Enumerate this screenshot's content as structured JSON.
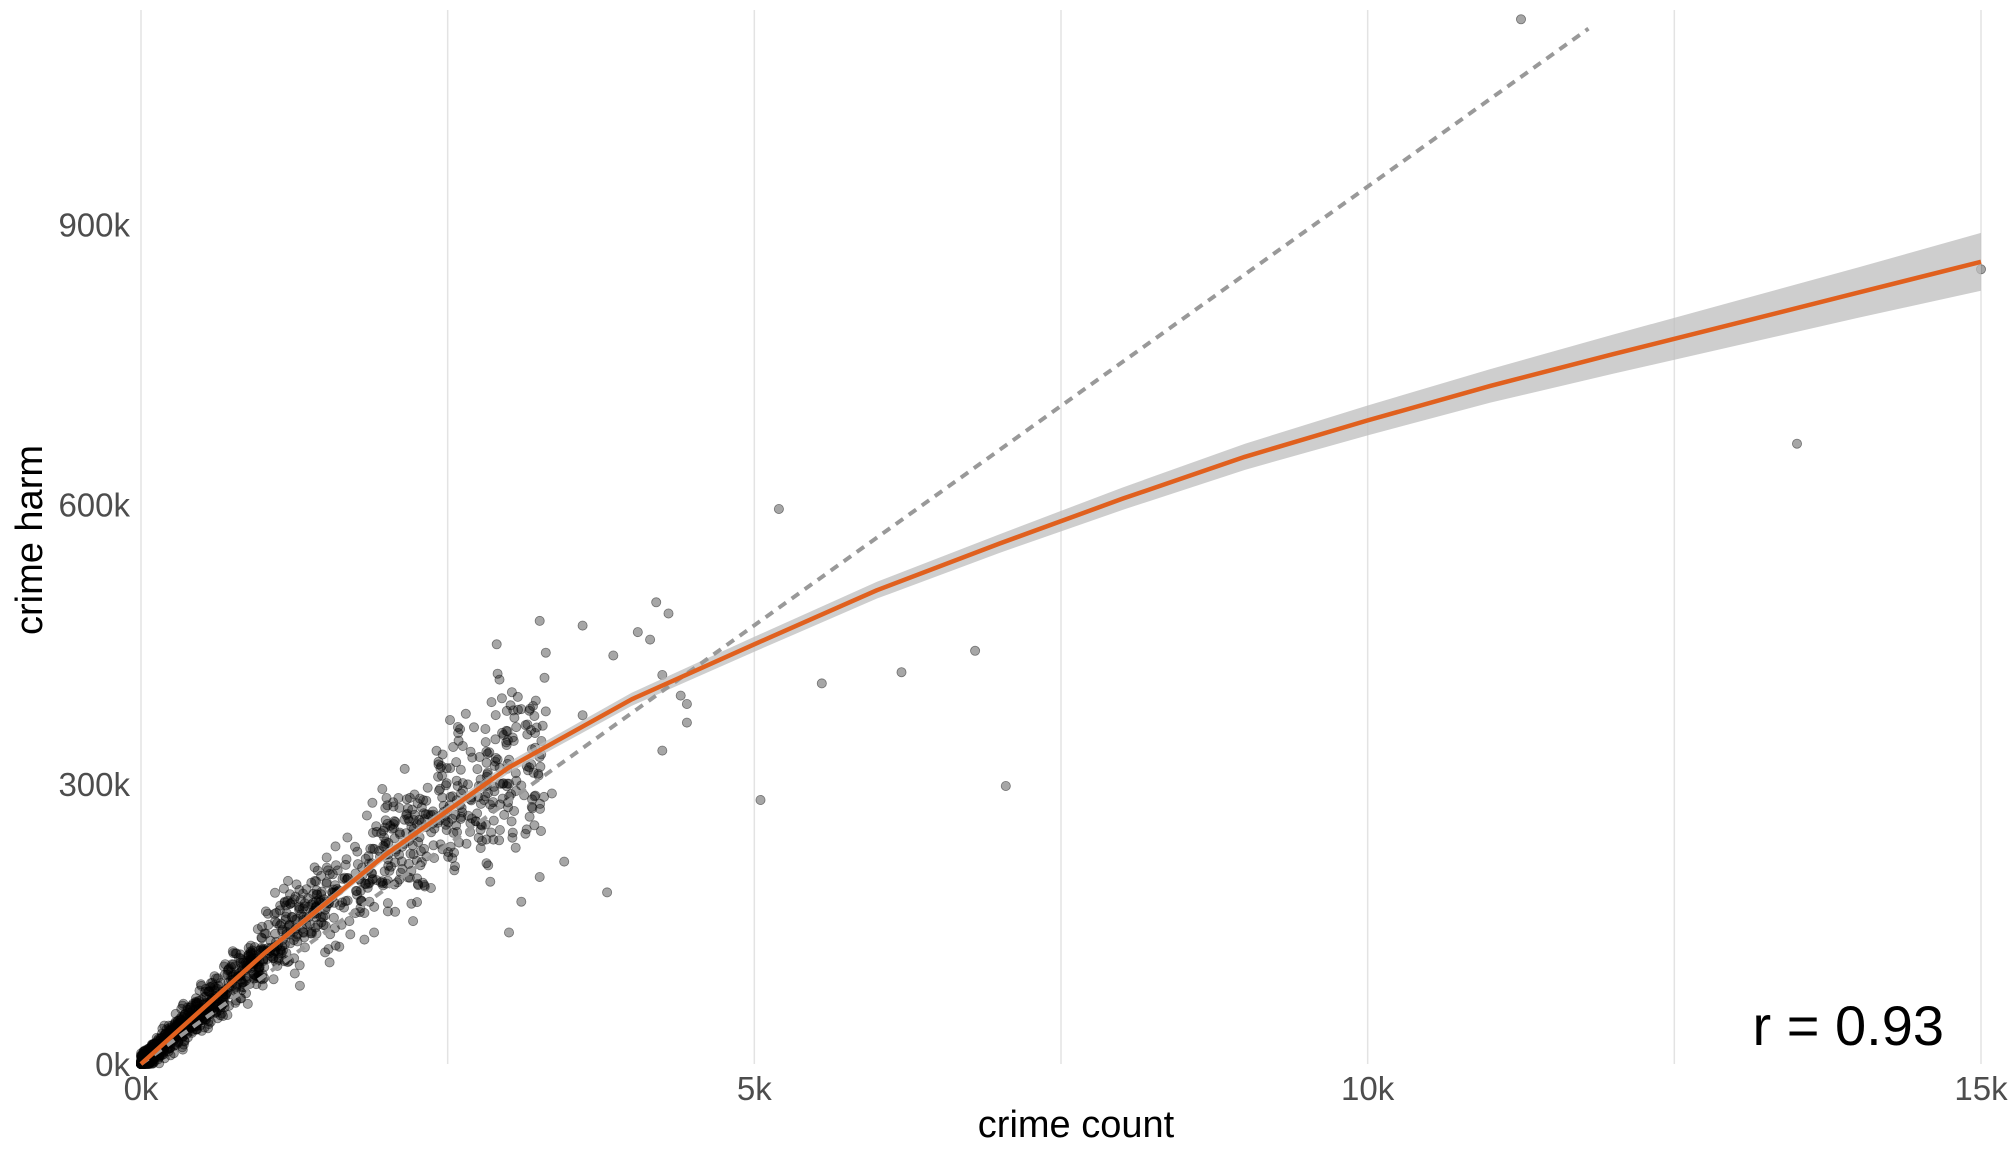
{
  "chart_data": {
    "type": "scatter",
    "xlabel": "crime count",
    "ylabel": "crime harm",
    "xlim": [
      0,
      15000
    ],
    "ylim": [
      0,
      1130000
    ],
    "x_ticks": [
      0,
      5000,
      10000,
      15000
    ],
    "x_tick_labels": [
      "0k",
      "5k",
      "10k",
      "15k"
    ],
    "y_ticks": [
      0,
      300000,
      600000,
      900000
    ],
    "y_tick_labels": [
      "0k",
      "300k",
      "600k",
      "900k"
    ],
    "x_minor_gridlines": [
      2500,
      7500,
      12500
    ],
    "grid": "vertical only",
    "annotation": "r = 0.93",
    "annotation_position": "bottom-right",
    "points_color": "#000000",
    "points_opacity": 0.35,
    "fit_color": "#e0601e",
    "band_color": "#bdbdbd",
    "reference_color": "#999999",
    "fit_curve": {
      "x": [
        0,
        1000,
        2000,
        3000,
        4000,
        5000,
        6000,
        7000,
        8000,
        9000,
        10000,
        11000,
        12000,
        13000,
        14000,
        15000
      ],
      "y": [
        0,
        118000,
        225000,
        318000,
        391000,
        450000,
        508000,
        558000,
        606000,
        651000,
        690000,
        727000,
        761000,
        794000,
        827000,
        860000
      ],
      "band_halfwidth": [
        0,
        3000,
        5000,
        6000,
        7000,
        8000,
        9000,
        10000,
        12000,
        14000,
        16000,
        18000,
        21000,
        24000,
        27000,
        31000
      ]
    },
    "reference_line": {
      "x": [
        0,
        11800
      ],
      "y": [
        0,
        1110000
      ]
    },
    "outliers": [
      {
        "x": 11250,
        "y": 1120000
      },
      {
        "x": 15000,
        "y": 852000
      },
      {
        "x": 13500,
        "y": 665000
      },
      {
        "x": 5200,
        "y": 595000
      },
      {
        "x": 5550,
        "y": 408000
      },
      {
        "x": 6200,
        "y": 420000
      },
      {
        "x": 6800,
        "y": 443000
      },
      {
        "x": 7050,
        "y": 298000
      },
      {
        "x": 5050,
        "y": 283000
      },
      {
        "x": 4200,
        "y": 495000
      },
      {
        "x": 4150,
        "y": 455000
      },
      {
        "x": 4300,
        "y": 483000
      },
      {
        "x": 4050,
        "y": 463000
      },
      {
        "x": 3600,
        "y": 470000
      },
      {
        "x": 3850,
        "y": 438000
      },
      {
        "x": 3250,
        "y": 475000
      },
      {
        "x": 2900,
        "y": 450000
      },
      {
        "x": 3300,
        "y": 441000
      },
      {
        "x": 4450,
        "y": 386000
      },
      {
        "x": 4450,
        "y": 366000
      },
      {
        "x": 4400,
        "y": 395000
      },
      {
        "x": 4250,
        "y": 417000
      },
      {
        "x": 4250,
        "y": 336000
      },
      {
        "x": 3600,
        "y": 374000
      },
      {
        "x": 3450,
        "y": 217000
      },
      {
        "x": 3800,
        "y": 184000
      },
      {
        "x": 3150,
        "y": 364000
      },
      {
        "x": 3300,
        "y": 378000
      },
      {
        "x": 3000,
        "y": 141000
      },
      {
        "x": 3100,
        "y": 174000
      },
      {
        "x": 3350,
        "y": 290000
      }
    ],
    "cluster": {
      "note": "dense cloud of several thousand points near the origin, x 0 to 3300, y 0 to 390000",
      "count": 1400,
      "x_max": 3300
    }
  }
}
